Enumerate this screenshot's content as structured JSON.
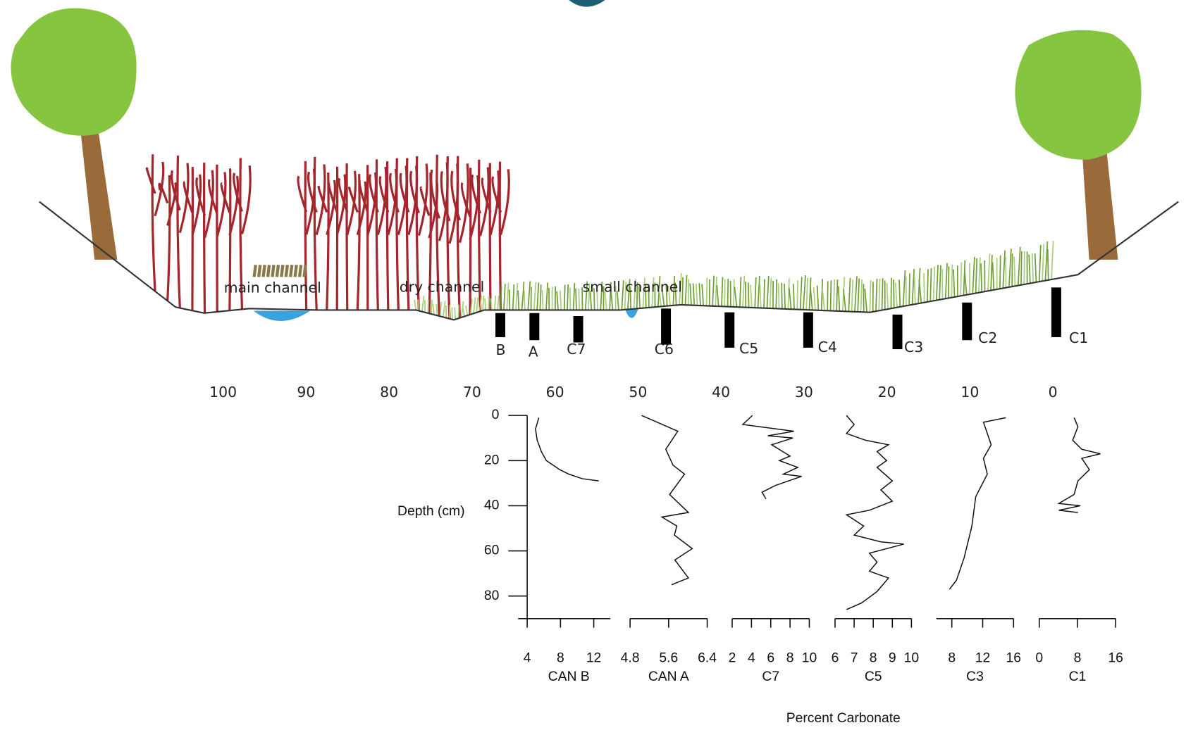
{
  "diagram": {
    "labels": {
      "main_channel": "main channel",
      "dry_channel": "dry channel",
      "small_channel": "small channel"
    },
    "cores": [
      "B",
      "A",
      "C7",
      "C6",
      "C5",
      "C4",
      "C3",
      "C2",
      "C1"
    ]
  },
  "distance_axis": {
    "xlim": [
      100,
      0
    ],
    "xticks": [
      100,
      90,
      80,
      70,
      60,
      50,
      40,
      30,
      20,
      10,
      0
    ]
  },
  "depth_axis": {
    "label": "Depth (cm)",
    "ylim": [
      0,
      90
    ],
    "yticks": [
      0,
      20,
      40,
      60,
      80
    ]
  },
  "xlabel": "Percent Carbonate",
  "chart_data": [
    {
      "type": "line",
      "title": "CAN B",
      "xlim": [
        4,
        14
      ],
      "xticks": [
        4,
        8,
        12
      ],
      "x": [
        5.4,
        5,
        5.2,
        5.7,
        6.3,
        7.9,
        9,
        10.6,
        12.6
      ],
      "values": [
        1,
        6,
        11,
        16,
        20,
        24,
        26,
        28,
        29
      ]
    },
    {
      "type": "line",
      "title": "CAN A",
      "xlim": [
        4.8,
        6.4
      ],
      "xticks": [
        4.8,
        5.6,
        6.4
      ],
      "x": [
        5.04,
        5.79,
        5.54,
        5.69,
        5.93,
        5.62,
        6.01,
        5.46,
        5.77,
        5.72,
        6.09,
        5.73,
        6.01,
        5.66
      ],
      "values": [
        0,
        7,
        15,
        22,
        26,
        35,
        43,
        45,
        49,
        53,
        59,
        64,
        72,
        75
      ]
    },
    {
      "type": "line",
      "title": "C7",
      "xlim": [
        2,
        10
      ],
      "xticks": [
        2,
        4,
        6,
        8,
        10
      ],
      "x": [
        4.1,
        3.1,
        8.4,
        5.7,
        8.3,
        6.1,
        8.0,
        6.9,
        8.8,
        7.3,
        9.2,
        6.5,
        5.1,
        5.5
      ],
      "values": [
        0,
        4,
        7,
        9,
        10,
        13,
        18,
        20,
        23,
        26,
        27,
        31,
        34,
        37
      ]
    },
    {
      "type": "line",
      "title": "C5",
      "xlim": [
        6,
        10
      ],
      "xticks": [
        6,
        7,
        8,
        9,
        10
      ],
      "x": [
        6.6,
        7.0,
        6.6,
        7.6,
        8.8,
        8.2,
        8.7,
        8.2,
        9.0,
        8.4,
        9.0,
        7.8,
        6.6,
        7.5,
        7.0,
        8.4,
        9.6,
        7.8,
        8.2,
        7.8,
        8.8,
        8.2,
        7.4,
        6.6
      ],
      "values": [
        0,
        4,
        8,
        11,
        13,
        16,
        20,
        23,
        29,
        33,
        38,
        42,
        44,
        49,
        53,
        56,
        57,
        61,
        65,
        69,
        72,
        78,
        83,
        86
      ]
    },
    {
      "type": "line",
      "title": "C3",
      "xlim": [
        6,
        16
      ],
      "xticks": [
        8,
        12,
        16
      ],
      "x": [
        15.0,
        12.1,
        13.1,
        12.1,
        12.6,
        11.1,
        10.6,
        9.6,
        8.6,
        7.7
      ],
      "values": [
        1,
        3,
        13,
        19,
        26,
        36,
        49,
        63,
        73,
        77
      ]
    },
    {
      "type": "line",
      "title": "C1",
      "xlim": [
        0,
        16
      ],
      "xticks": [
        0,
        8,
        16
      ],
      "x": [
        7.3,
        8.1,
        7.0,
        8.9,
        12.8,
        8.9,
        10.5,
        8.1,
        7.3,
        4.1,
        8.6,
        4.1,
        8.1
      ],
      "values": [
        1,
        5,
        11,
        15,
        17,
        19,
        24,
        29,
        35,
        39,
        40,
        42,
        43
      ]
    }
  ]
}
